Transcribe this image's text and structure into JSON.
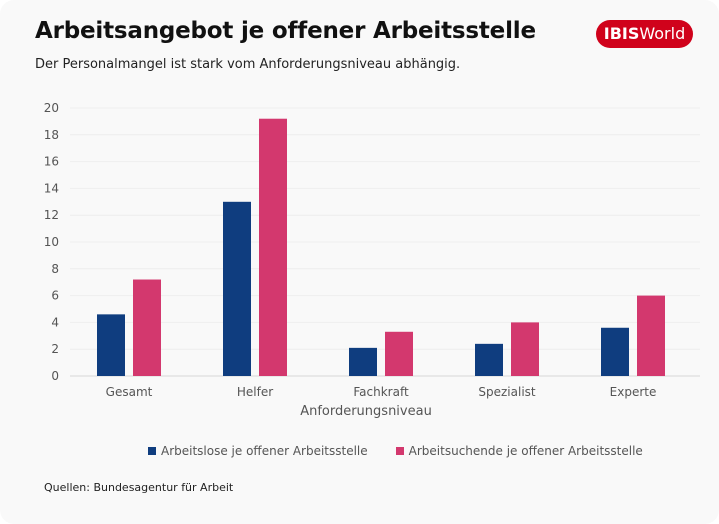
{
  "header": {
    "title": "Arbeitsangebot je offener Arbeitsstelle",
    "subtitle": "Der Personalmangel ist stark vom Anforderungsniveau abhängig.",
    "logo_bold": "IBIS",
    "logo_light": "World"
  },
  "footer": {
    "source": "Quellen: Bundesagentur für Arbeit"
  },
  "colors": {
    "series1": "#0f3d7f",
    "series2": "#d3386e",
    "brand": "#d0021b"
  },
  "chart_data": {
    "type": "bar",
    "title": "Arbeitsangebot je offener Arbeitsstelle",
    "subtitle": "Der Personalmangel ist stark vom Anforderungsniveau abhängig.",
    "xlabel": "Anforderungsniveau",
    "ylabel": "",
    "ylim": [
      0,
      20
    ],
    "yticks": [
      0,
      2,
      4,
      6,
      8,
      10,
      12,
      14,
      16,
      18,
      20
    ],
    "grid": true,
    "legend_position": "bottom",
    "categories": [
      "Gesamt",
      "Helfer",
      "Fachkraft",
      "Spezialist",
      "Experte"
    ],
    "series": [
      {
        "name": "Arbeitslose je offener Arbeitsstelle",
        "values": [
          4.6,
          13.0,
          2.1,
          2.4,
          3.6
        ]
      },
      {
        "name": "Arbeitsuchende je offener Arbeitsstelle",
        "values": [
          7.2,
          19.2,
          3.3,
          4.0,
          6.0
        ]
      }
    ]
  }
}
